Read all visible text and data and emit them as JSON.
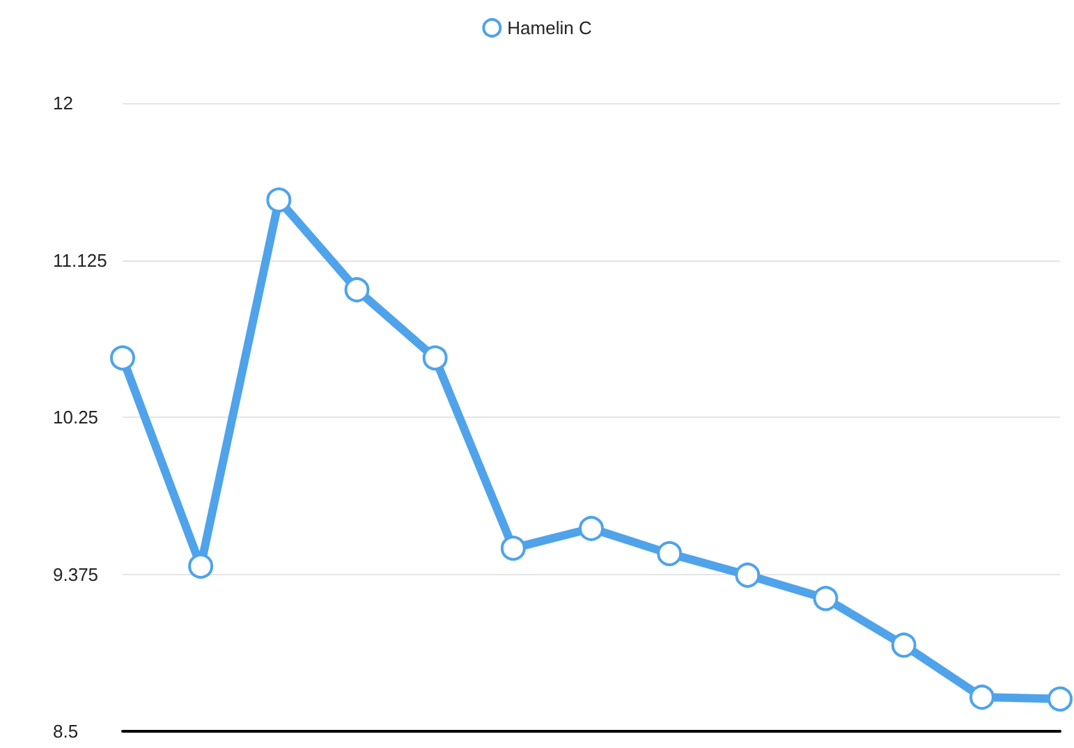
{
  "chart_data": {
    "type": "line",
    "categories": [
      null,
      null,
      null,
      null,
      null,
      null,
      null,
      null,
      null,
      null,
      null,
      null,
      null
    ],
    "series": [
      {
        "name": "Hamelin C",
        "color": "#4fa3ea",
        "values": [
          10.58,
          9.42,
          11.46,
          10.96,
          10.58,
          9.52,
          9.63,
          9.49,
          9.37,
          9.24,
          8.98,
          8.69,
          8.68
        ]
      }
    ],
    "ylim": [
      8.5,
      12
    ],
    "yticks": [
      8.5,
      9.375,
      10.25,
      11.125,
      12
    ],
    "grid": "y",
    "legend": "top",
    "marker": "circle",
    "tick_labels": "y"
  }
}
